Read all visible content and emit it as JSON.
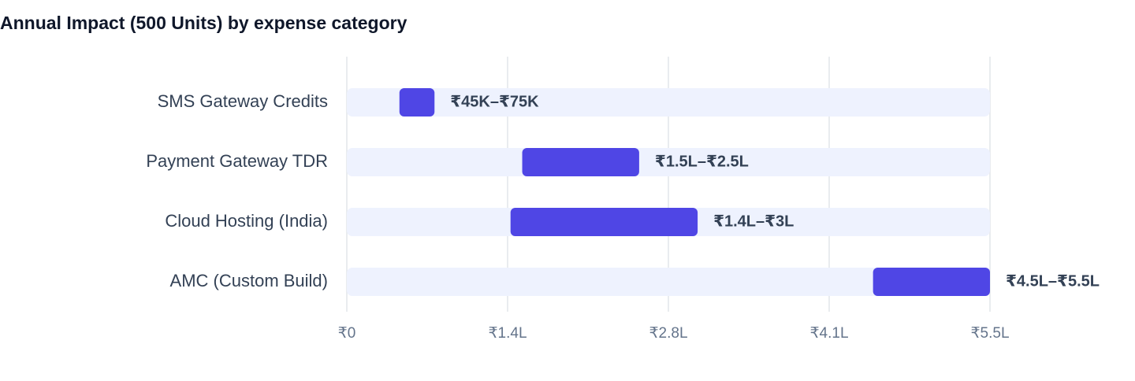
{
  "chart_data": {
    "type": "range_bar",
    "title": "Annual Impact (500 Units) by expense category",
    "categories": [
      "SMS Gateway Credits",
      "Payment Gateway TDR",
      "Cloud Hosting (India)",
      "AMC (Custom Build)"
    ],
    "low": [
      45000,
      150000,
      140000,
      450000
    ],
    "high": [
      75000,
      250000,
      300000,
      550000
    ],
    "value_labels": [
      "₹45K–₹75K",
      "₹1.5L–₹2.5L",
      "₹1.4L–₹3L",
      "₹4.5L–₹5.5L"
    ],
    "color": "#4f46e5",
    "track_color": "#eef2fe",
    "xlim": [
      0,
      550000
    ],
    "xticks": [
      {
        "value": 0,
        "label": "₹0"
      },
      {
        "value": 137500,
        "label": "₹1.4L"
      },
      {
        "value": 275000,
        "label": "₹2.8L"
      },
      {
        "value": 412500,
        "label": "₹4.1L"
      },
      {
        "value": 550000,
        "label": "₹5.5L"
      }
    ],
    "grid": true
  }
}
